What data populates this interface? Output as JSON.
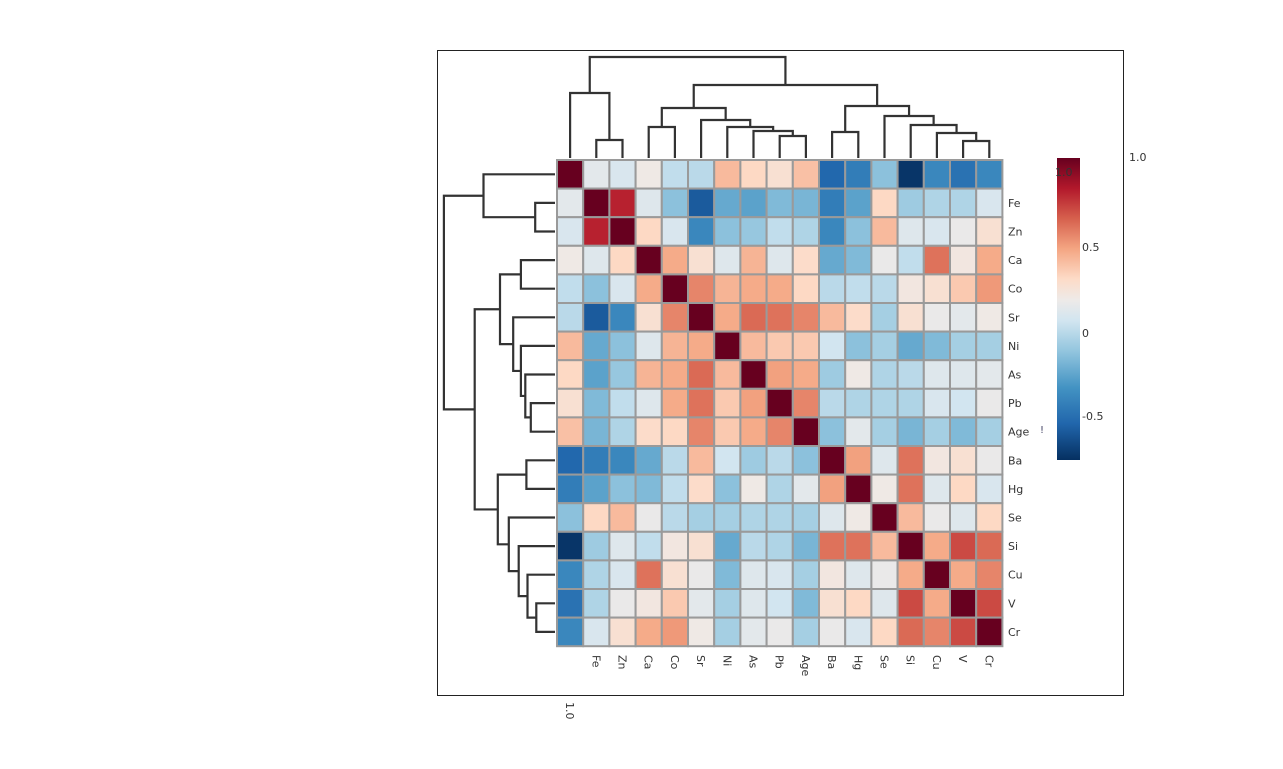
{
  "chart_data": {
    "type": "heatmap",
    "title": "",
    "labels": [
      "1.0",
      "Fe",
      "Zn",
      "Ca",
      "Co",
      "Sr",
      "Ni",
      "As",
      "Pb",
      "Age",
      "Ba",
      "Hg",
      "Se",
      "Si",
      "Cu",
      "V",
      "Cr"
    ],
    "colorbar": {
      "vmin": -0.77,
      "vmax": 1.0,
      "ticks": [
        "1.0",
        "0.5",
        "0",
        "-0.5"
      ],
      "tick_values": [
        1.0,
        0.5,
        0,
        -0.5
      ],
      "colormap": "RdBu_r"
    },
    "corner_label": "1.0",
    "marker_glyph": "!",
    "dendrogram": [
      [
        0,
        [
          1,
          2,
          0.18
        ],
        0.65
      ],
      [
        [
          [
            3,
            4,
            0.31
          ],
          [
            5,
            [
              6,
              [
                7,
                [
                  8,
                  9,
                  0.22
                ],
                0.27
              ],
              0.31
            ],
            0.38
          ],
          0.5
        ],
        [
          [
            10,
            11,
            0.26
          ],
          [
            12,
            [
              13,
              [
                14,
                [
                  15,
                  16,
                  0.17
                ],
                0.25
              ],
              0.33
            ],
            0.42
          ],
          0.52
        ],
        0.73
      ],
      1.01
    ],
    "matrix": [
      [
        1,
        0.12,
        0.08,
        0.18,
        0.0,
        -0.02,
        0.4,
        0.3,
        0.25,
        0.38,
        -0.55,
        -0.45,
        -0.15,
        -0.75,
        -0.4,
        -0.5,
        -0.4
      ],
      [
        0.12,
        1,
        0.8,
        0.1,
        -0.15,
        -0.6,
        -0.25,
        -0.28,
        -0.18,
        -0.2,
        -0.45,
        -0.28,
        0.3,
        -0.1,
        -0.05,
        -0.05,
        0.08
      ],
      [
        0.08,
        0.8,
        1,
        0.3,
        0.08,
        -0.4,
        -0.15,
        -0.12,
        0.0,
        -0.05,
        -0.4,
        -0.15,
        0.4,
        0.1,
        0.08,
        0.15,
        0.25
      ],
      [
        0.18,
        0.1,
        0.3,
        1,
        0.45,
        0.25,
        0.1,
        0.42,
        0.1,
        0.28,
        -0.25,
        -0.18,
        0.15,
        0.0,
        0.6,
        0.2,
        0.45
      ],
      [
        0.0,
        -0.15,
        0.08,
        0.45,
        1,
        0.55,
        0.42,
        0.45,
        0.45,
        0.3,
        -0.02,
        0.0,
        -0.02,
        0.2,
        0.25,
        0.35,
        0.5
      ],
      [
        -0.02,
        -0.6,
        -0.4,
        0.25,
        0.55,
        1,
        0.45,
        0.62,
        0.6,
        0.55,
        0.4,
        0.28,
        -0.08,
        0.25,
        0.15,
        0.12,
        0.18
      ],
      [
        0.4,
        -0.25,
        -0.15,
        0.1,
        0.42,
        0.45,
        1,
        0.4,
        0.35,
        0.35,
        0.05,
        -0.15,
        -0.08,
        -0.25,
        -0.18,
        -0.08,
        -0.08
      ],
      [
        0.3,
        -0.28,
        -0.12,
        0.42,
        0.45,
        0.62,
        0.4,
        1,
        0.48,
        0.45,
        -0.1,
        0.18,
        -0.05,
        -0.02,
        0.1,
        0.1,
        0.12
      ],
      [
        0.25,
        -0.18,
        0.0,
        0.1,
        0.45,
        0.6,
        0.35,
        0.48,
        1,
        0.55,
        -0.02,
        -0.05,
        -0.05,
        -0.05,
        0.08,
        0.05,
        0.15
      ],
      [
        0.38,
        -0.2,
        -0.05,
        0.28,
        0.3,
        0.55,
        0.35,
        0.45,
        0.55,
        1,
        -0.15,
        0.12,
        -0.08,
        -0.2,
        -0.08,
        -0.18,
        -0.08
      ],
      [
        -0.55,
        -0.45,
        -0.4,
        -0.25,
        -0.02,
        0.4,
        0.05,
        -0.1,
        -0.02,
        -0.15,
        1,
        0.48,
        0.1,
        0.6,
        0.2,
        0.25,
        0.15
      ],
      [
        -0.45,
        -0.28,
        -0.15,
        -0.18,
        0.0,
        0.28,
        -0.15,
        0.18,
        -0.05,
        0.12,
        0.48,
        1,
        0.18,
        0.6,
        0.1,
        0.3,
        0.08
      ],
      [
        -0.15,
        0.3,
        0.4,
        0.15,
        -0.02,
        -0.08,
        -0.08,
        -0.05,
        -0.05,
        -0.08,
        0.1,
        0.18,
        1,
        0.4,
        0.15,
        0.1,
        0.3
      ],
      [
        -0.75,
        -0.1,
        0.1,
        0.0,
        0.2,
        0.25,
        -0.25,
        -0.02,
        -0.05,
        -0.2,
        0.6,
        0.6,
        0.4,
        1,
        0.45,
        0.7,
        0.62
      ],
      [
        -0.4,
        -0.05,
        0.08,
        0.6,
        0.25,
        0.15,
        -0.18,
        0.1,
        0.08,
        -0.08,
        0.2,
        0.1,
        0.15,
        0.45,
        1,
        0.45,
        0.55
      ],
      [
        -0.5,
        -0.05,
        0.15,
        0.2,
        0.35,
        0.12,
        -0.08,
        0.1,
        0.05,
        -0.18,
        0.25,
        0.3,
        0.1,
        0.7,
        0.45,
        1,
        0.7
      ],
      [
        -0.4,
        0.08,
        0.25,
        0.45,
        0.5,
        0.18,
        -0.08,
        0.12,
        0.15,
        -0.08,
        0.15,
        0.08,
        0.3,
        0.62,
        0.55,
        0.7,
        1
      ]
    ]
  }
}
